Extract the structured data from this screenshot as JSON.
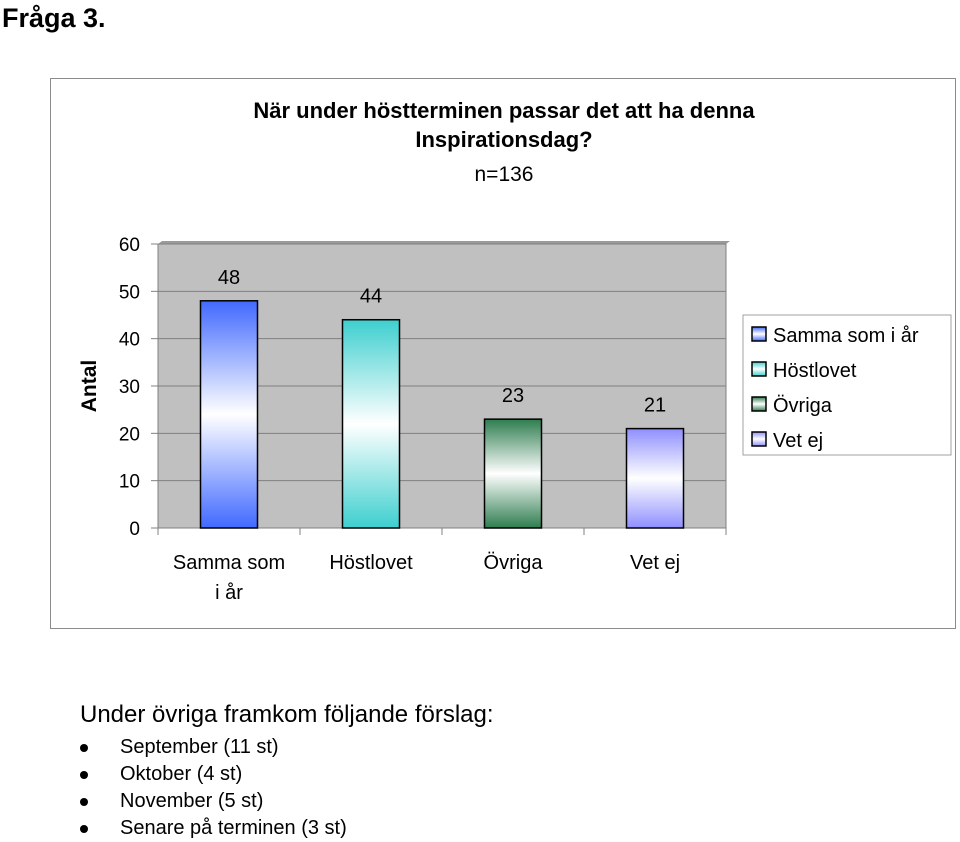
{
  "page": {
    "heading": "Fråga 3."
  },
  "chart_data": {
    "type": "bar",
    "title": [
      "När under höstterminen passar det att ha denna",
      "Inspirationsdag?"
    ],
    "subtitle": "n=136",
    "xlabel": "",
    "ylabel": "Antal",
    "categories": [
      [
        "Samma som",
        "i år"
      ],
      [
        "Höstlovet"
      ],
      [
        "Övriga"
      ],
      [
        "Vet ej"
      ]
    ],
    "values": [
      48,
      44,
      23,
      21
    ],
    "data_labels": [
      "48",
      "44",
      "23",
      "21"
    ],
    "legend": [
      "Samma som i år",
      "Höstlovet",
      "Övriga",
      "Vet ej"
    ],
    "legend_placement": "right",
    "ylim": [
      0,
      60
    ],
    "yticks": [
      0,
      10,
      20,
      30,
      40,
      50,
      60
    ],
    "grid": true,
    "colors": {
      "plot_bg": "#c0c0c0",
      "series": [
        {
          "edge": "#4169ff",
          "mid": "#ffffff"
        },
        {
          "edge": "#3ecfcf",
          "mid": "#ffffff"
        },
        {
          "edge": "#2e7d4f",
          "mid": "#ffffff"
        },
        {
          "edge": "#8f8fff",
          "mid": "#ffffff"
        }
      ]
    }
  },
  "notes": {
    "title": "Under övriga framkom följande förslag:",
    "items": [
      "September (11 st)",
      "Oktober (4 st)",
      "November (5 st)",
      "Senare på terminen (3 st)"
    ]
  }
}
